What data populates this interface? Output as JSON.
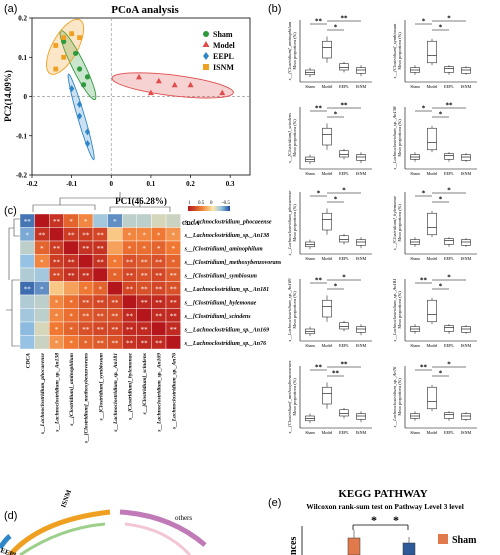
{
  "panels": {
    "a": "(a)",
    "b": "(b)",
    "c": "(c)",
    "d": "(d)",
    "e": "(e)"
  },
  "pcoa": {
    "title": "PCoA analysis",
    "xlabel": "PC1(46.28%)",
    "ylabel": "PC2(14.09%)",
    "legend": [
      "Sham",
      "Model",
      "EEPL",
      "ISNM"
    ]
  },
  "colors": {
    "sham": "#2e9a3e",
    "model": "#e04c4c",
    "eepl": "#2f86c8",
    "isnm": "#f0a020"
  },
  "chart_data": [
    {
      "type": "scatter",
      "title": "PCoA analysis",
      "xlabel": "PC1(46.28%)",
      "ylabel": "PC2(14.09%)",
      "xlim": [
        -0.2,
        0.35
      ],
      "ylim": [
        -0.2,
        0.2
      ],
      "xticks": [
        "-0.2",
        "-0.1",
        "0",
        "0.1",
        "0.2",
        "0.3"
      ],
      "yticks": [
        "-0.2",
        "-0.1",
        "0",
        "0.1",
        "0.2"
      ],
      "legend_position": "top-right",
      "series": [
        {
          "name": "Sham",
          "color": "#2e9a3e",
          "marker": "circle",
          "points": [
            [
              -0.12,
              0.14
            ],
            [
              -0.09,
              0.11
            ],
            [
              -0.08,
              0.07
            ],
            [
              -0.06,
              0.05
            ],
            [
              -0.07,
              0.03
            ]
          ]
        },
        {
          "name": "Model",
          "color": "#e04c4c",
          "marker": "triangle",
          "points": [
            [
              0.07,
              0.05
            ],
            [
              0.12,
              0.04
            ],
            [
              0.16,
              0.03
            ],
            [
              0.2,
              0.03
            ],
            [
              0.28,
              0.01
            ],
            [
              0.1,
              0.01
            ]
          ]
        },
        {
          "name": "EEPL",
          "color": "#2f86c8",
          "marker": "diamond",
          "points": [
            [
              -0.1,
              0.02
            ],
            [
              -0.08,
              -0.02
            ],
            [
              -0.08,
              -0.05
            ],
            [
              -0.06,
              -0.09
            ],
            [
              -0.06,
              -0.12
            ]
          ]
        },
        {
          "name": "ISNM",
          "color": "#f0a020",
          "marker": "square",
          "points": [
            [
              -0.14,
              0.13
            ],
            [
              -0.12,
              0.15
            ],
            [
              -0.1,
              0.16
            ],
            [
              -0.08,
              0.15
            ],
            [
              -0.12,
              0.1
            ],
            [
              -0.14,
              0.07
            ]
          ]
        }
      ]
    }
  ],
  "boxplots": {
    "ylabel": "Mean proportions (%)",
    "groups": [
      "Sham",
      "Model",
      "EEPL",
      "ISNM"
    ],
    "items": [
      {
        "taxon": "s__[Clostridium]_aminophilum",
        "sig": [
          "**",
          "*",
          "**"
        ]
      },
      {
        "taxon": "s__[Clostridium]_symbiosum",
        "sig": [
          "*",
          "*",
          "*"
        ]
      },
      {
        "taxon": "s__[Clostridium]_scindens",
        "sig": [
          "**",
          "*",
          "**"
        ]
      },
      {
        "taxon": "s__Lachnoclostridium_sp._An138",
        "sig": [
          "*",
          "*",
          "**"
        ]
      },
      {
        "taxon": "s__Lachnoclostridium_phocaeense",
        "sig": [
          "*",
          "*",
          "*"
        ]
      },
      {
        "taxon": "s__[Clostridium]_hylemonae",
        "sig": [
          "*",
          "*",
          "*"
        ]
      },
      {
        "taxon": "s__Lachnoclostridium_sp._An169",
        "sig": [
          "**",
          "*",
          "*"
        ]
      },
      {
        "taxon": "s__Lachnoclostridium_sp._An181",
        "sig": [
          "**",
          "*",
          "*"
        ]
      },
      {
        "taxon": "s__[Clostridium]_methoxybenzovorans",
        "sig": [
          "**",
          "**",
          "**"
        ]
      },
      {
        "taxon": "s__Lachnoclostridium_sp._An76",
        "sig": [
          "**",
          "*",
          "*"
        ]
      }
    ]
  },
  "heatmap": {
    "legend_ticks": [
      "1",
      "0.5",
      "0",
      "-0.5"
    ],
    "column_label": "CDCA",
    "rows": [
      "s__Lachnoclostridium_phocaeense",
      "s__Lachnoclostridium_sp._An138",
      "s__[Clostridium]_aminophilum",
      "s__[Clostridium]_methoxybenzovorans",
      "s__[Clostridium]_symbiosum",
      "s__Lachnoclostridium_sp._An181",
      "s__[Clostridium]_hylemonae",
      "s__[Clostridium]_scindens",
      "s__Lachnoclostridium_sp._An169",
      "s__Lachnoclostridium_sp._An76"
    ],
    "columns": [
      "CDCA",
      "s__Lachnoclostridium_phocaeense",
      "s__Lachnoclostridium_sp._An138",
      "s__[Clostridium]_aminophilum",
      "s__[Clostridium]_methoxybenzovorans",
      "s__[Clostridium]_symbiosum",
      "s__Lachnoclostridium_sp._An181",
      "s__[Clostridium]_hylemonae",
      "s__[Clostridium]_scindens",
      "s__Lachnoclostridium_sp._An169",
      "s__Lachnoclostridium_sp._An76"
    ],
    "values": [
      [
        -0.75,
        1,
        0.85,
        0.6,
        0.45,
        -0.25,
        -0.6,
        -0.15,
        -0.15,
        -0.05,
        -0.1
      ],
      [
        -0.45,
        0.85,
        1,
        0.8,
        0.8,
        0.75,
        0.2,
        0.45,
        0.45,
        0.5,
        0.4
      ],
      [
        -0.15,
        0.6,
        0.8,
        1,
        0.85,
        0.85,
        0.35,
        0.55,
        0.55,
        0.6,
        0.5
      ],
      [
        -0.3,
        0.45,
        0.8,
        0.85,
        1,
        0.85,
        0.5,
        0.7,
        0.65,
        0.7,
        0.6
      ],
      [
        -0.2,
        -0.25,
        0.75,
        0.85,
        0.85,
        1,
        0.6,
        0.75,
        0.7,
        0.75,
        0.65
      ],
      [
        -0.8,
        -0.6,
        0.2,
        0.35,
        0.5,
        0.6,
        1,
        0.75,
        0.7,
        0.75,
        0.7
      ],
      [
        -0.2,
        -0.15,
        0.45,
        0.55,
        0.7,
        0.75,
        0.75,
        1,
        0.9,
        0.9,
        0.85
      ],
      [
        -0.25,
        -0.15,
        0.45,
        0.55,
        0.65,
        0.7,
        0.7,
        0.9,
        1,
        0.9,
        0.9
      ],
      [
        -0.35,
        -0.05,
        0.5,
        0.6,
        0.7,
        0.75,
        0.75,
        0.9,
        0.9,
        1,
        0.9
      ],
      [
        -0.3,
        -0.1,
        0.4,
        0.5,
        0.6,
        0.65,
        0.7,
        0.85,
        0.9,
        0.9,
        1
      ]
    ]
  },
  "chord": {
    "labels": [
      "ISNM",
      "others",
      "EEPL"
    ]
  },
  "kegg": {
    "title": "KEGG PATHWAY",
    "subtitle": "Wilcoxon rank-sum test on Pathway Level 3 level",
    "ylabel_fragment": "nces",
    "sig": [
      "*",
      "*"
    ],
    "legend": [
      "Sham"
    ]
  }
}
